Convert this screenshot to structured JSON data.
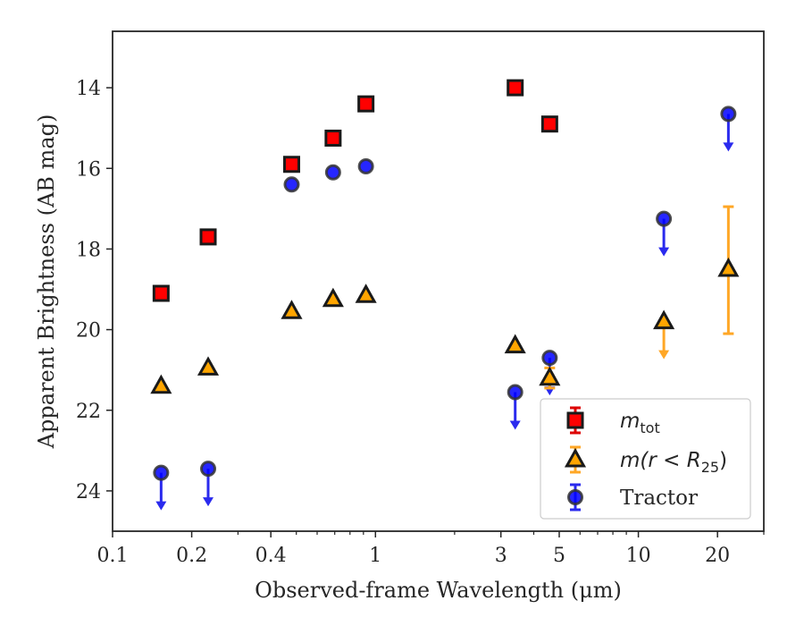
{
  "chart_data": {
    "type": "scatter",
    "xlabel": "Observed-frame Wavelength (μm)",
    "ylabel": "Apparent Brightness (AB mag)",
    "xscale": "log",
    "xlim": [
      0.1,
      30
    ],
    "ylim": [
      25,
      12.6
    ],
    "y_inverted": true,
    "x_ticks": [
      {
        "value": 0.1,
        "label": "0.1"
      },
      {
        "value": 0.2,
        "label": "0.2"
      },
      {
        "value": 0.4,
        "label": "0.4"
      },
      {
        "value": 1,
        "label": "1"
      },
      {
        "value": 3,
        "label": "3"
      },
      {
        "value": 5,
        "label": "5"
      },
      {
        "value": 10,
        "label": "10"
      },
      {
        "value": 20,
        "label": "20"
      }
    ],
    "y_ticks": [
      {
        "value": 14,
        "label": "14"
      },
      {
        "value": 16,
        "label": "16"
      },
      {
        "value": 18,
        "label": "18"
      },
      {
        "value": 20,
        "label": "20"
      },
      {
        "value": 22,
        "label": "22"
      },
      {
        "value": 24,
        "label": "24"
      }
    ],
    "grid": false,
    "legend_position": "lower-right",
    "series": [
      {
        "key": "mtot",
        "legend_main": "m",
        "legend_sub": "tot",
        "marker": "square",
        "color": "#ff0000",
        "edge_color": "#1a1a1a",
        "points": [
          {
            "x": 0.153,
            "y": 19.1
          },
          {
            "x": 0.231,
            "y": 17.7
          },
          {
            "x": 0.48,
            "y": 15.9
          },
          {
            "x": 0.69,
            "y": 15.25
          },
          {
            "x": 0.92,
            "y": 14.4
          },
          {
            "x": 3.4,
            "y": 14.0
          },
          {
            "x": 4.6,
            "y": 14.9
          }
        ]
      },
      {
        "key": "mr25",
        "legend_main": "m(r < R",
        "legend_sub": "25",
        "legend_close": ")",
        "marker": "triangle",
        "color": "#ffa500",
        "edge_color": "#1a1a1a",
        "points": [
          {
            "x": 0.153,
            "y": 21.4
          },
          {
            "x": 0.231,
            "y": 20.95
          },
          {
            "x": 0.48,
            "y": 19.55
          },
          {
            "x": 0.69,
            "y": 19.25
          },
          {
            "x": 0.92,
            "y": 19.15
          },
          {
            "x": 3.4,
            "y": 20.4
          },
          {
            "x": 4.6,
            "y": 21.2,
            "yerr": [
              0.25,
              0.25
            ]
          },
          {
            "x": 12.5,
            "y": 19.8,
            "upper_limit": true
          },
          {
            "x": 22.0,
            "y": 18.5,
            "yerr": [
              1.55,
              1.6
            ]
          }
        ]
      },
      {
        "key": "tractor",
        "legend_main": "Tractor",
        "marker": "circle",
        "color": "#0000ff",
        "edge_color": "#333333",
        "points": [
          {
            "x": 0.153,
            "y": 23.55,
            "upper_limit": true
          },
          {
            "x": 0.231,
            "y": 23.45,
            "upper_limit": true
          },
          {
            "x": 0.48,
            "y": 16.4
          },
          {
            "x": 0.69,
            "y": 16.1
          },
          {
            "x": 0.92,
            "y": 15.95
          },
          {
            "x": 3.4,
            "y": 21.55,
            "upper_limit": true
          },
          {
            "x": 4.6,
            "y": 20.7,
            "upper_limit": true
          },
          {
            "x": 12.5,
            "y": 17.25,
            "upper_limit": true
          },
          {
            "x": 22.0,
            "y": 14.65,
            "upper_limit": true
          }
        ]
      }
    ]
  }
}
